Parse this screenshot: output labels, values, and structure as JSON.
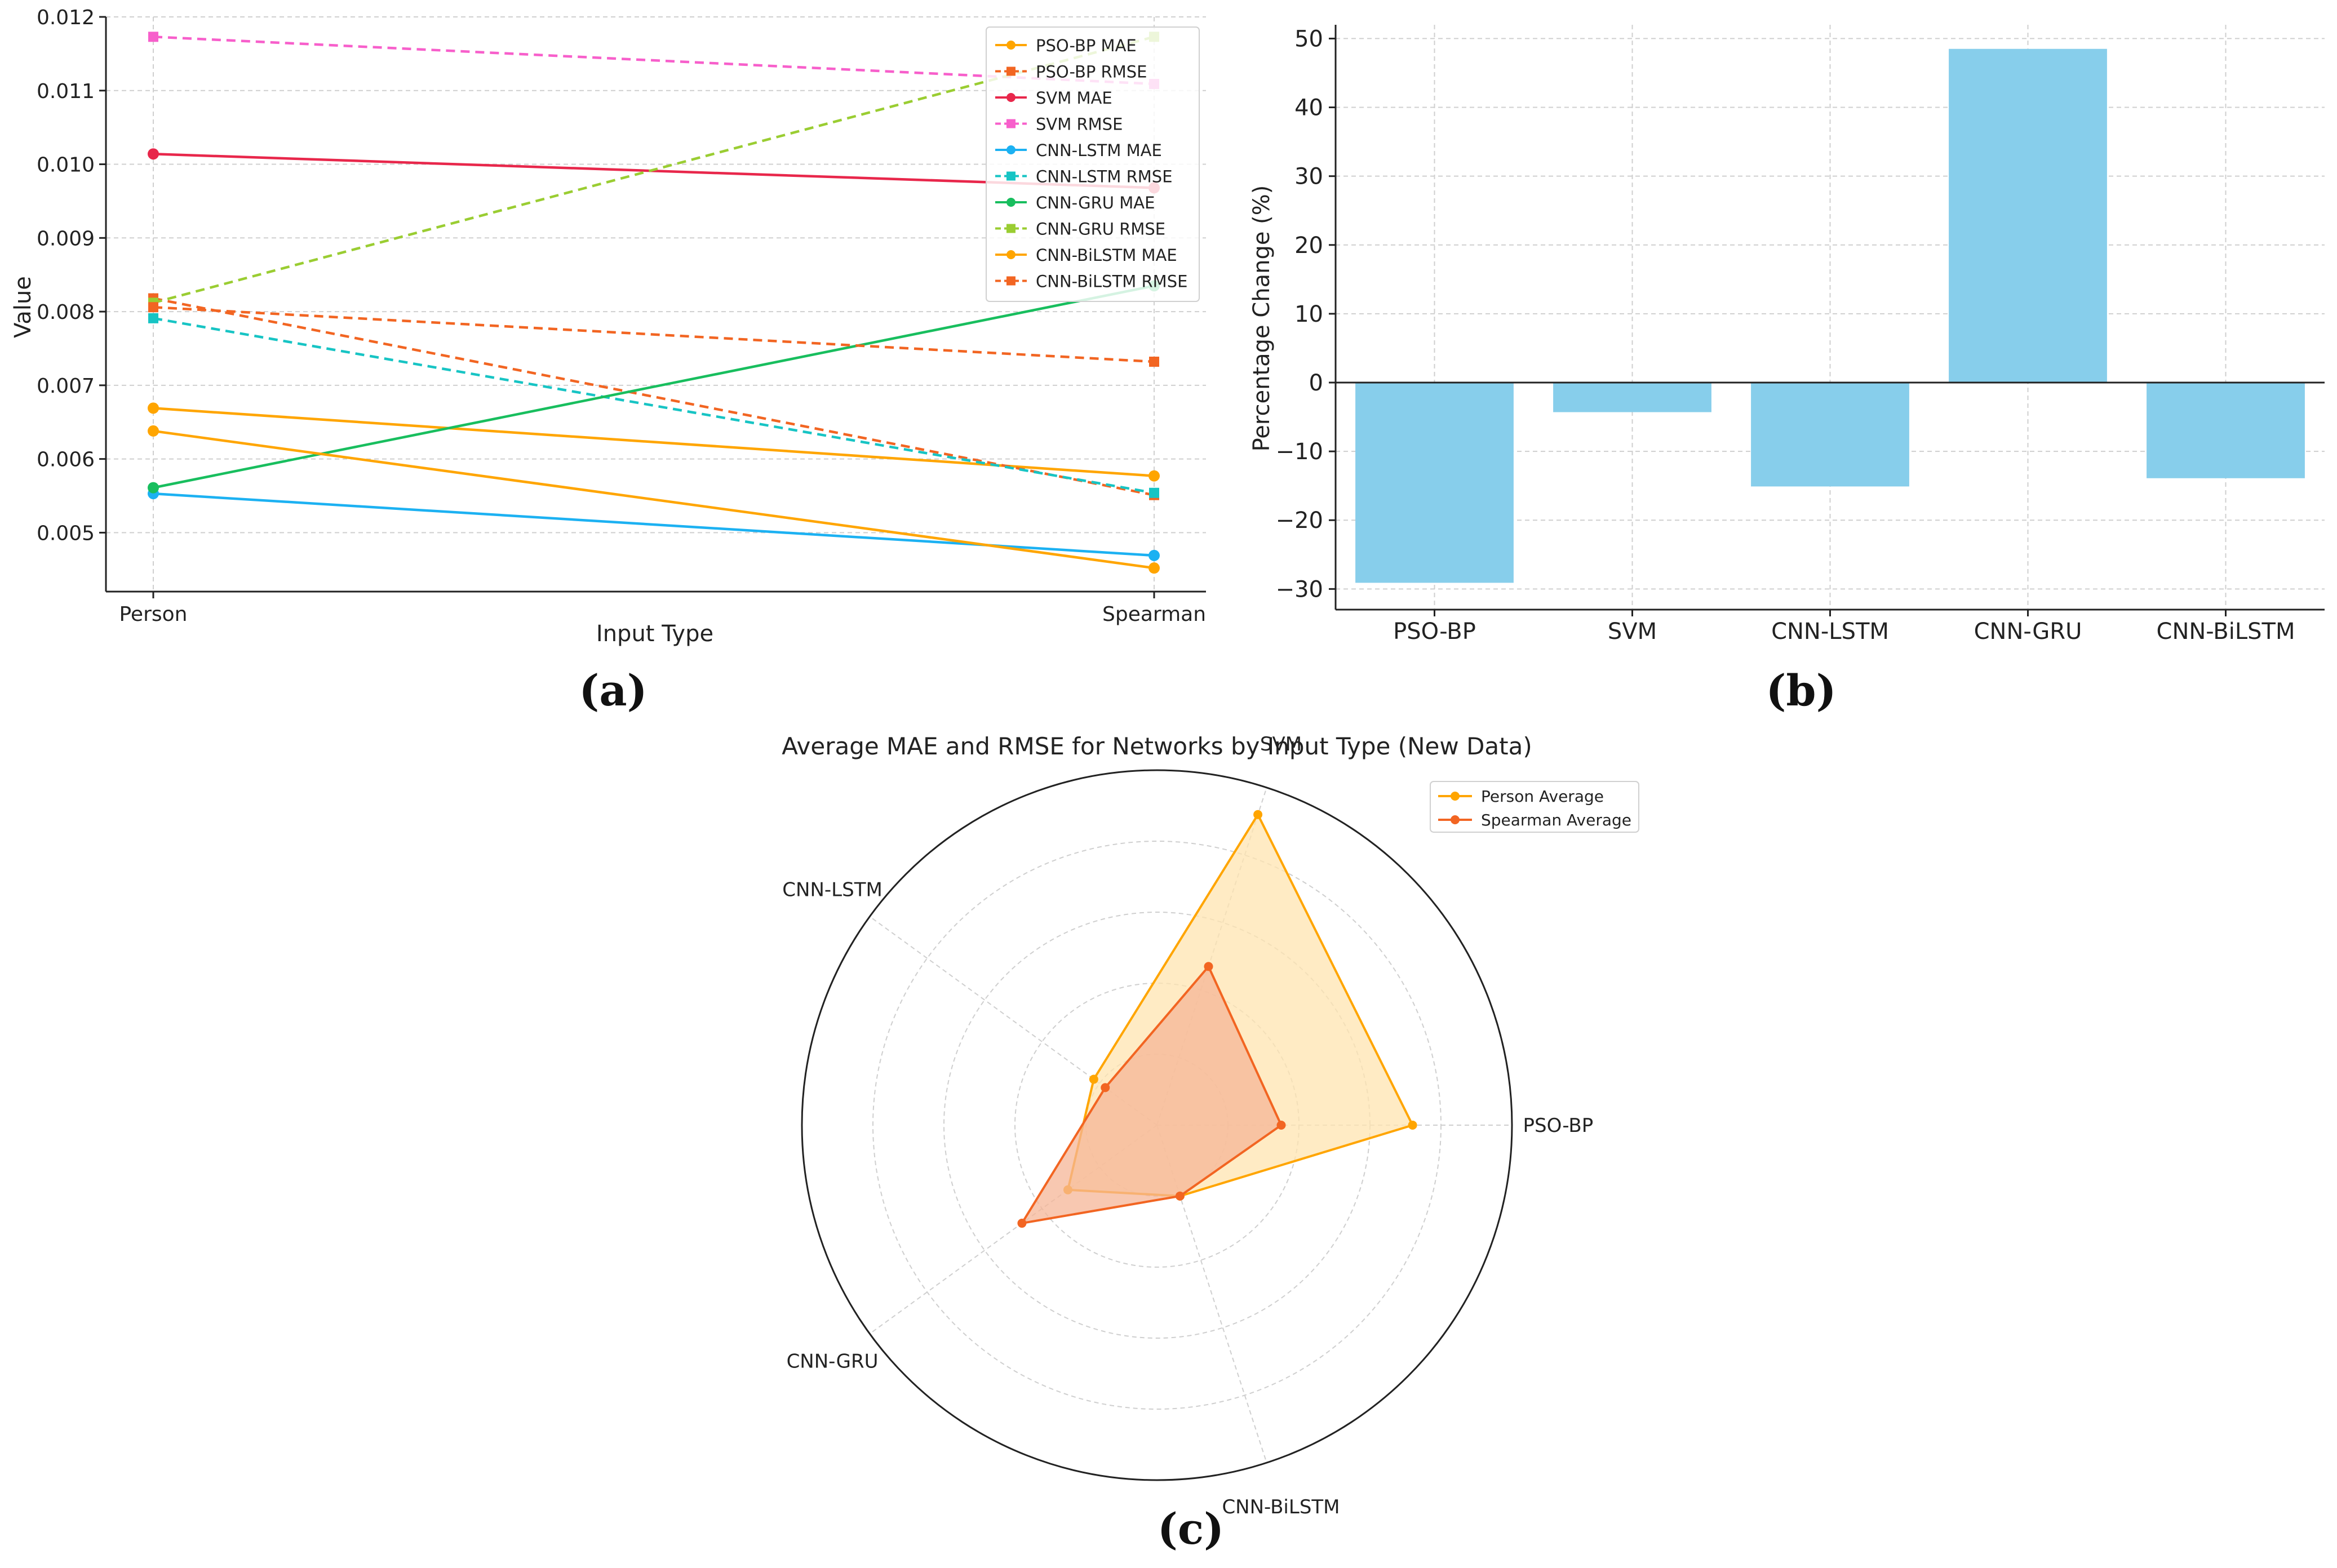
{
  "captions": {
    "a": "(a)",
    "b": "(b)",
    "c": "(c)"
  },
  "chart_data": [
    {
      "type": "line",
      "title": "",
      "xlabel": "Input Type",
      "ylabel": "Value",
      "categories": [
        "Person",
        "Spearman"
      ],
      "ylim": [
        0.0042,
        0.012
      ],
      "yticks": [
        "0.005",
        "0.006",
        "0.007",
        "0.008",
        "0.009",
        "0.010",
        "0.011",
        "0.012"
      ],
      "yticks_values": [
        0.005,
        0.006,
        0.007,
        0.008,
        0.009,
        0.01,
        0.011,
        0.012
      ],
      "grid": true,
      "legend_position": "top-right",
      "series": [
        {
          "name": "PSO-BP MAE",
          "values": [
            0.00669,
            0.00577
          ],
          "color": "#FFA500",
          "dashed": false,
          "marker": "circle"
        },
        {
          "name": "PSO-BP RMSE",
          "values": [
            0.00818,
            0.00551
          ],
          "color": "#F26522",
          "dashed": true,
          "marker": "square"
        },
        {
          "name": "SVM MAE",
          "values": [
            0.01014,
            0.00968
          ],
          "color": "#E8274B",
          "dashed": false,
          "marker": "circle"
        },
        {
          "name": "SVM RMSE",
          "values": [
            0.01173,
            0.01109
          ],
          "color": "#F75FCB",
          "dashed": true,
          "marker": "square"
        },
        {
          "name": "CNN-LSTM MAE",
          "values": [
            0.00553,
            0.00469
          ],
          "color": "#1CB1F2",
          "dashed": false,
          "marker": "circle"
        },
        {
          "name": "CNN-LSTM RMSE",
          "values": [
            0.00791,
            0.00554
          ],
          "color": "#17C4C4",
          "dashed": true,
          "marker": "square"
        },
        {
          "name": "CNN-GRU MAE",
          "values": [
            0.00561,
            0.00835
          ],
          "color": "#18BE5E",
          "dashed": false,
          "marker": "circle"
        },
        {
          "name": "CNN-GRU RMSE",
          "values": [
            0.00812,
            0.01173
          ],
          "color": "#9ACD32",
          "dashed": true,
          "marker": "square"
        },
        {
          "name": "CNN-BiLSTM MAE",
          "values": [
            0.00638,
            0.00452
          ],
          "color": "#FFA500",
          "dashed": false,
          "marker": "circle"
        },
        {
          "name": "CNN-BiLSTM RMSE",
          "values": [
            0.00806,
            0.00732
          ],
          "color": "#F26522",
          "dashed": true,
          "marker": "square"
        }
      ]
    },
    {
      "type": "bar",
      "title": "",
      "xlabel": "",
      "ylabel": "Percentage Change (%)",
      "categories": [
        "PSO-BP",
        "SVM",
        "CNN-LSTM",
        "CNN-GRU",
        "CNN-BiLSTM"
      ],
      "values": [
        -29.1,
        -4.3,
        -15.1,
        48.5,
        -13.9
      ],
      "ylim": [
        -33,
        52
      ],
      "yticks": [
        "−30",
        "−20",
        "−10",
        "0",
        "10",
        "20",
        "30",
        "40",
        "50"
      ],
      "yticks_values": [
        -30,
        -20,
        -10,
        0,
        10,
        20,
        30,
        40,
        50
      ],
      "grid": true,
      "bar_color": "#87CEEB"
    },
    {
      "type": "radar",
      "title": "Average MAE and RMSE for Networks by Input Type (New Data)",
      "categories": [
        "PSO-BP",
        "SVM",
        "CNN-LSTM",
        "CNN-GRU",
        "CNN-BiLSTM"
      ],
      "rmax": 1.0,
      "legend_position": "top-right",
      "series": [
        {
          "name": "Person Average",
          "values": [
            0.72,
            0.92,
            0.22,
            0.31,
            0.21
          ],
          "color": "#FFA500",
          "fill": "#FFE4B0"
        },
        {
          "name": "Spearman Average",
          "values": [
            0.35,
            0.47,
            0.18,
            0.47,
            0.21
          ],
          "color": "#F26522",
          "fill": "#F5B597"
        }
      ]
    }
  ]
}
